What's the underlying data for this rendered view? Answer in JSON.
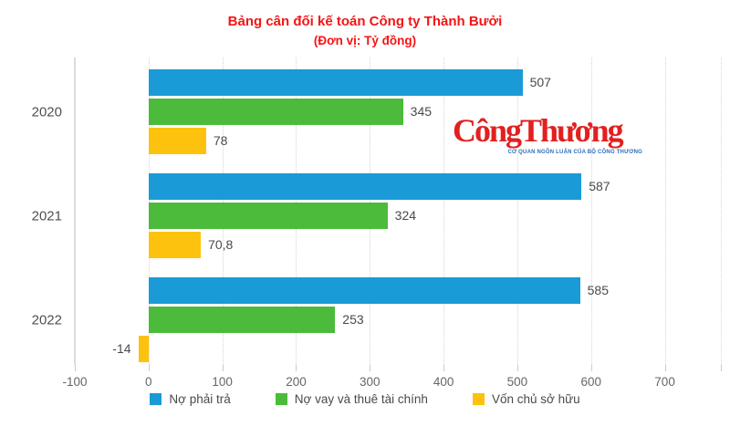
{
  "title": {
    "line1": "Bảng cân đối kế toán Công ty Thành Bưởi",
    "line2": "(Đơn vị: Tỷ đồng)",
    "color": "#f41414"
  },
  "watermark": {
    "text": "CôngThương",
    "tagline": "CƠ QUAN NGÔN LUẬN CỦA BỘ CÔNG THƯƠNG",
    "text_color": "#e2201f",
    "tagline_color": "#2f6db8"
  },
  "chart_data": {
    "type": "bar",
    "orientation": "horizontal",
    "title": "Bảng cân đối kế toán Công ty Thành Bưởi",
    "subtitle": "(Đơn vị: Tỷ đồng)",
    "categories": [
      "2020",
      "2021",
      "2022"
    ],
    "series": [
      {
        "name": "Nợ phải trả",
        "color": "#1a9bd8",
        "values": [
          507,
          587,
          585
        ],
        "labels": [
          "507",
          "587",
          "585"
        ]
      },
      {
        "name": "Nợ vay và thuê tài chính",
        "color": "#4cbb3c",
        "values": [
          345,
          324,
          253
        ],
        "labels": [
          "345",
          "324",
          "253"
        ]
      },
      {
        "name": "Vốn chủ sở hữu",
        "color": "#fdc20d",
        "values": [
          78,
          70.8,
          -14
        ],
        "labels": [
          "78",
          "70,8",
          "-14"
        ]
      }
    ],
    "xlabel": "",
    "ylabel": "",
    "x_ticks": [
      -100,
      0,
      100,
      200,
      300,
      400,
      500,
      600,
      700
    ],
    "xlim": [
      -100,
      776
    ],
    "grid": "dotted-vertical",
    "legend_position": "bottom",
    "value_labels": "outside-end"
  }
}
